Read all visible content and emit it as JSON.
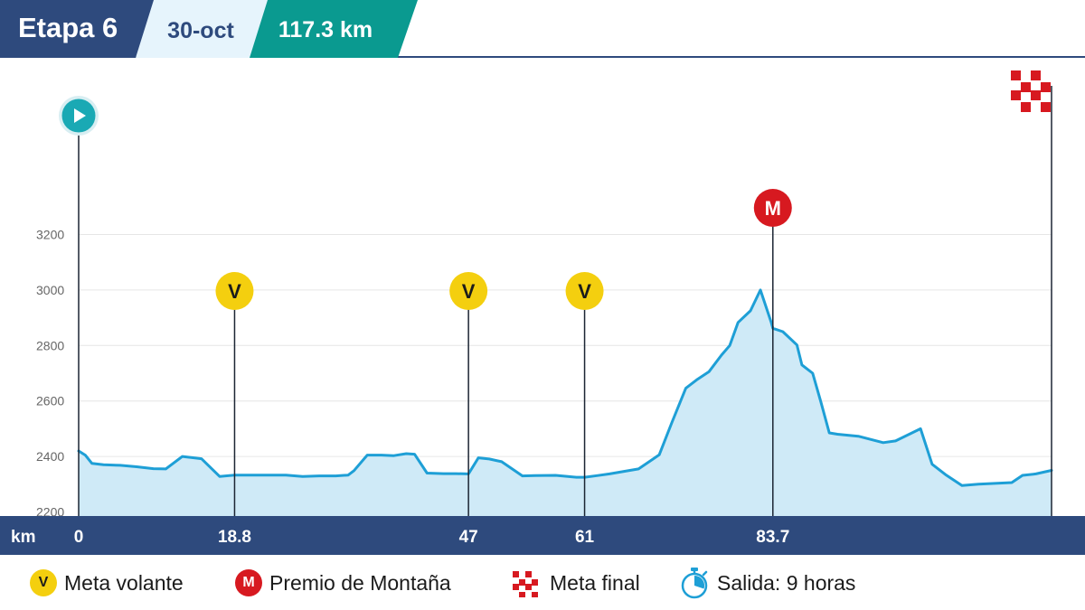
{
  "header": {
    "stage": "Etapa 6",
    "date": "30-oct",
    "distance": "117.3 km"
  },
  "colors": {
    "navy": "#2e4a7d",
    "light_blue_bg": "#e6f4fc",
    "teal": "#0a9a90",
    "profile_line": "#1e9fd6",
    "profile_fill": "#cfeaf7",
    "sprint_yellow": "#f4cf0f",
    "mountain_red": "#d71920",
    "start_teal": "#1aa9b4"
  },
  "chart_data": {
    "type": "area",
    "x_unit_label": "km",
    "x_ticks": [
      {
        "km": 0,
        "label": "0"
      },
      {
        "km": 18.8,
        "label": "18.8"
      },
      {
        "km": 47,
        "label": "47"
      },
      {
        "km": 61,
        "label": "61"
      },
      {
        "km": 83.7,
        "label": "83.7"
      }
    ],
    "y_ticks": [
      2200,
      2400,
      2600,
      2800,
      3000,
      3200
    ],
    "xlim": [
      0,
      117.3
    ],
    "ylim": [
      2200,
      3400
    ],
    "grid": true,
    "profile": {
      "x": [
        0,
        0.8,
        1.6,
        3,
        5,
        7,
        9,
        10.5,
        12.5,
        14.8,
        17,
        18.8,
        22,
        25,
        27,
        29,
        31,
        32.5,
        33.2,
        34.8,
        36.5,
        38,
        39.5,
        40.5,
        42,
        44,
        45.5,
        47,
        48.2,
        49.5,
        51,
        53.5,
        55,
        57.5,
        59,
        60,
        61,
        62.5,
        64,
        67.5,
        70,
        71.5,
        73.2,
        74.5,
        76,
        77.5,
        78.5,
        79.5,
        81,
        82.2,
        83.5,
        83.7,
        84.9,
        86.6,
        87.2,
        88.5,
        89.5,
        90.5,
        91.5,
        94,
        97,
        98.5,
        101.5,
        102.9,
        104.5,
        106.5,
        108,
        108.5,
        112.5,
        113.8,
        115.4,
        117.3
      ],
      "y": [
        2420,
        2405,
        2375,
        2370,
        2368,
        2363,
        2356,
        2355,
        2400,
        2392,
        2328,
        2333,
        2333,
        2333,
        2328,
        2330,
        2330,
        2333,
        2349,
        2405,
        2405,
        2403,
        2410,
        2408,
        2340,
        2338,
        2338,
        2337,
        2395,
        2391,
        2381,
        2330,
        2331,
        2332,
        2328,
        2325,
        2325,
        2331,
        2337,
        2355,
        2406,
        2521,
        2646,
        2676,
        2706,
        2765,
        2800,
        2883,
        2925,
        3000,
        2883,
        2862,
        2850,
        2802,
        2730,
        2700,
        2595,
        2485,
        2480,
        2473,
        2450,
        2456,
        2500,
        2372,
        2335,
        2295,
        2299,
        2300,
        2306,
        2332,
        2337,
        2350
      ]
    },
    "markers": [
      {
        "type": "start",
        "km": 0
      },
      {
        "type": "sprint",
        "km": 18.8,
        "label": "V"
      },
      {
        "type": "sprint",
        "km": 47,
        "label": "V"
      },
      {
        "type": "sprint",
        "km": 61,
        "label": "V"
      },
      {
        "type": "mountain",
        "km": 83.7,
        "label": "M"
      },
      {
        "type": "finish",
        "km": 117.3
      }
    ]
  },
  "legend": {
    "sprint_symbol": "V",
    "sprint_label": "Meta volante",
    "mountain_symbol": "M",
    "mountain_label": "Premio de Montaña",
    "finish_label": "Meta final",
    "start_time_label": "Salida: 9 horas"
  }
}
